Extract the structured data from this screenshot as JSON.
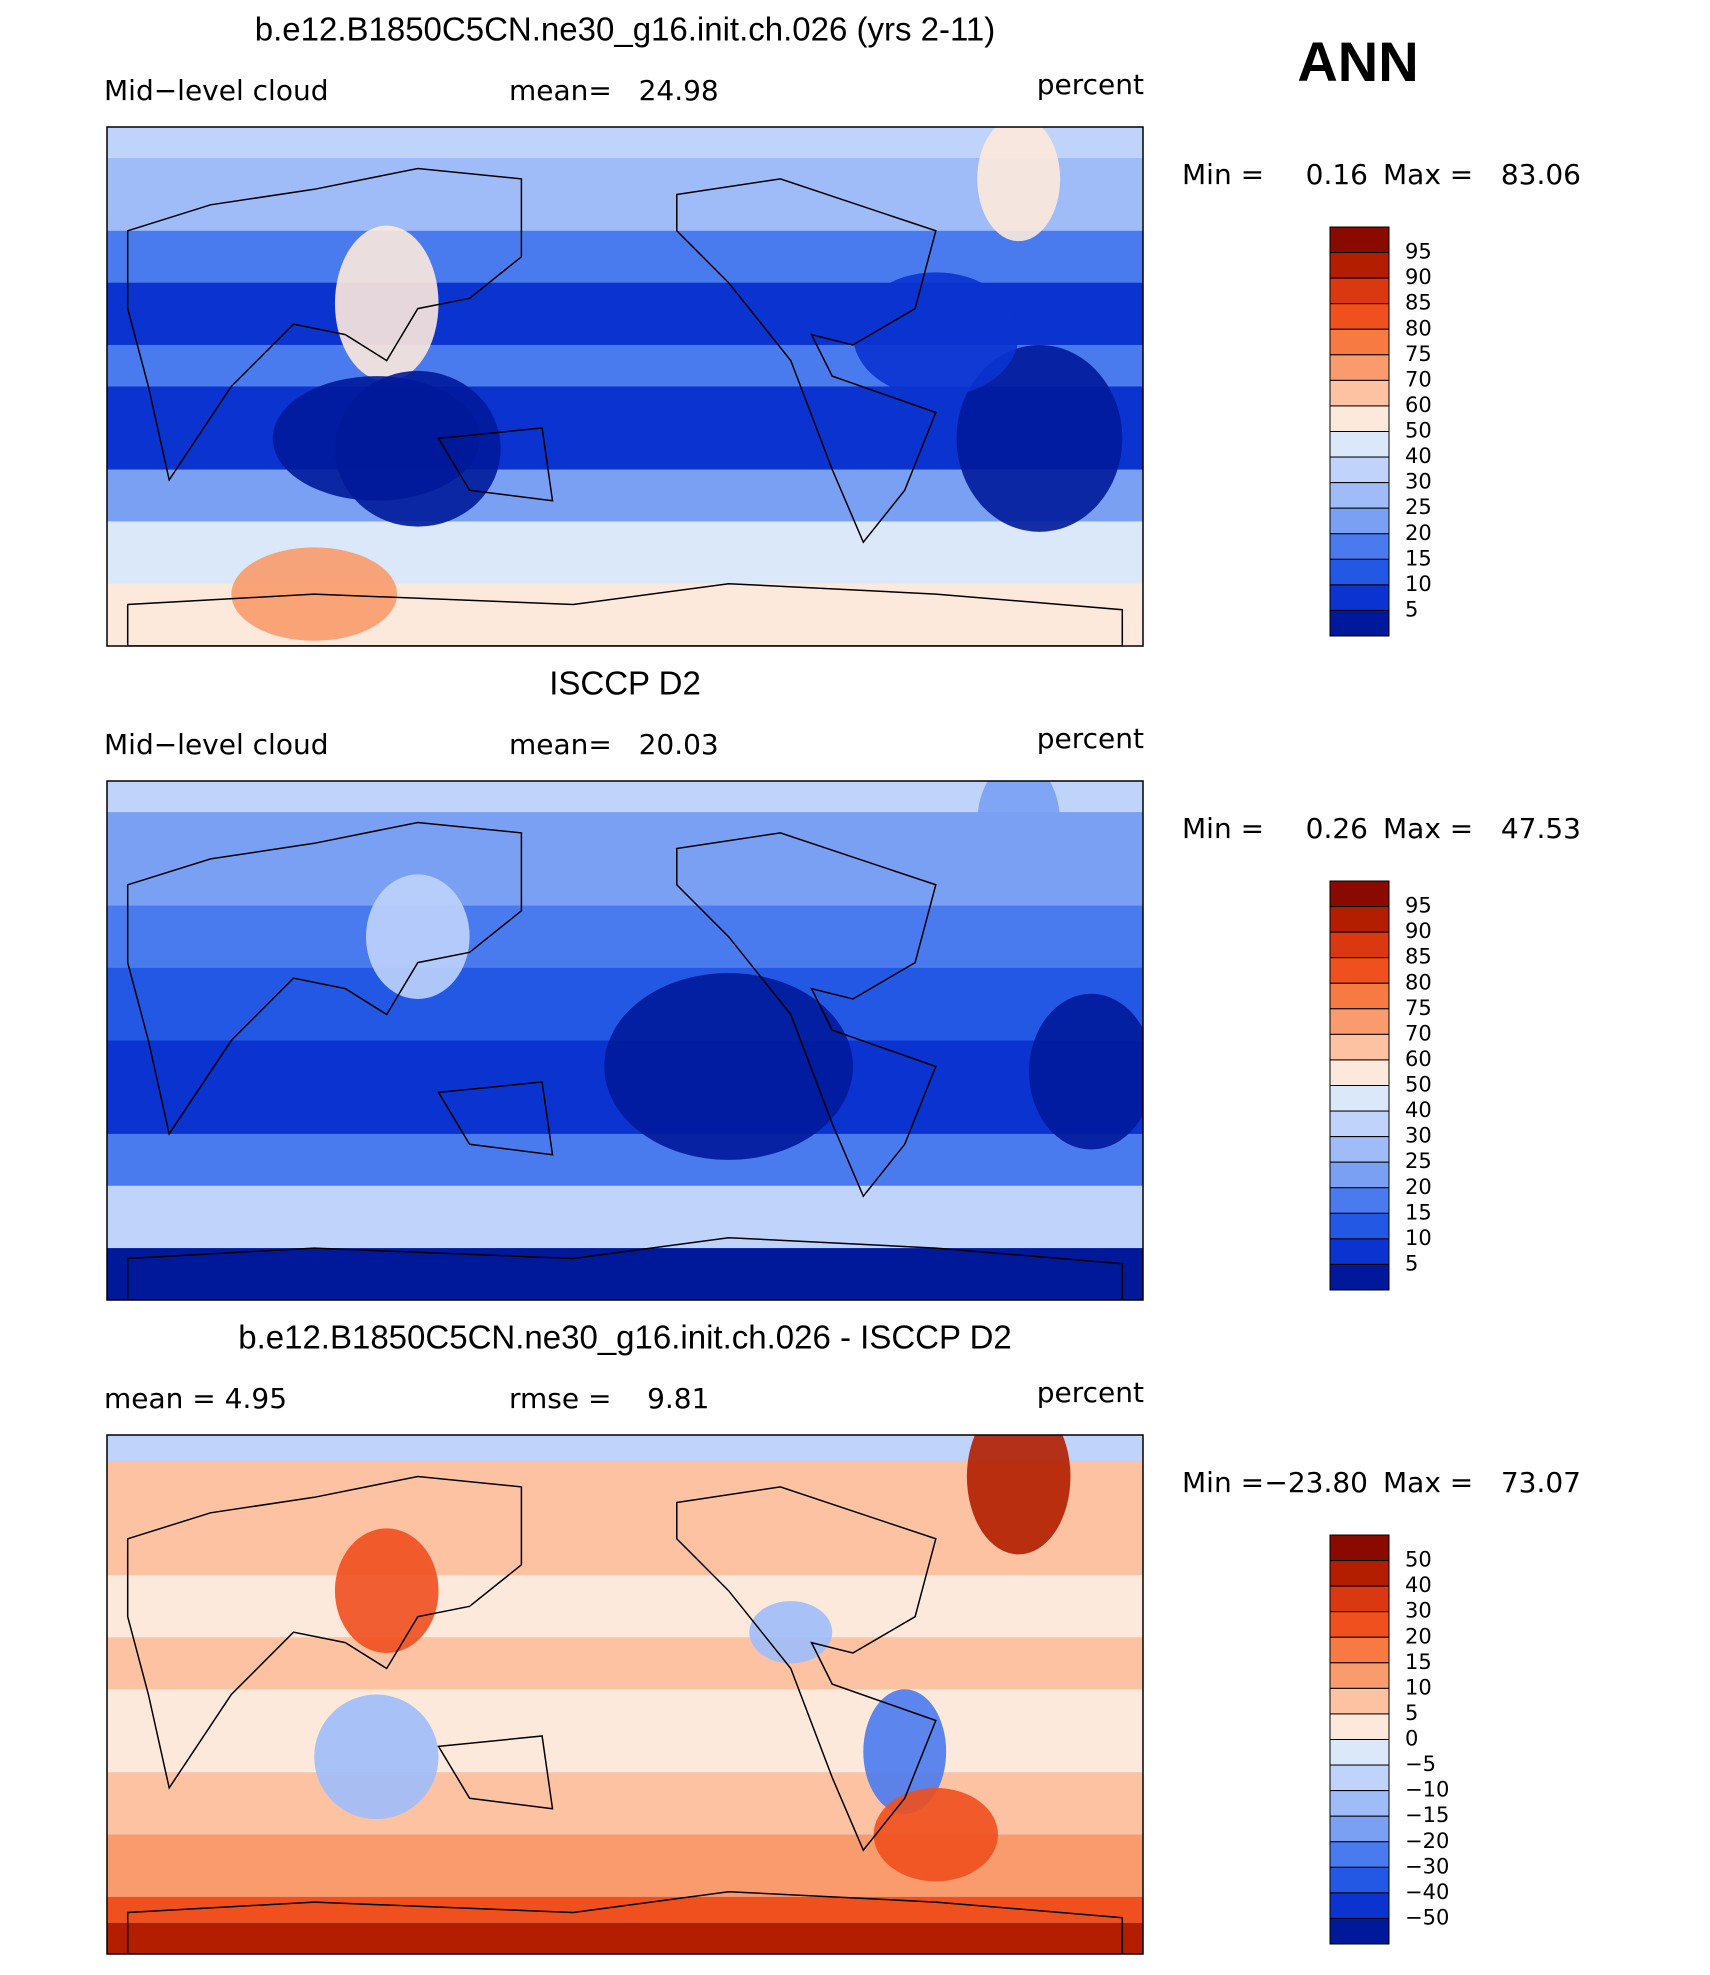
{
  "season": "ANN",
  "colors": [
    "#8a0a00",
    "#b31e00",
    "#d93810",
    "#f04f1e",
    "#f77a42",
    "#f99b6c",
    "#fcc2a2",
    "#fde9dc",
    "#dbe8fa",
    "#bfd3fb",
    "#9fbcf9",
    "#7aa0f4",
    "#4a7bee",
    "#2358e5",
    "#0a33cf",
    "#00199a"
  ],
  "panels": [
    {
      "title": "b.e12.B1850C5CN.ne30_g16.init.ch.026 (yrs 2-11)",
      "left": "Mid−level cloud",
      "stat1": "mean=   24.98",
      "stat2": null,
      "units": "percent",
      "min_label": "Min =",
      "min": "0.16",
      "max_label": "Max =",
      "max": "83.06",
      "levels": [
        "95",
        "90",
        "85",
        "80",
        "75",
        "70",
        "60",
        "50",
        "40",
        "30",
        "25",
        "20",
        "15",
        "10",
        "5"
      ]
    },
    {
      "title": "ISCCP D2",
      "left": "Mid−level cloud",
      "stat1": "mean=   20.03",
      "stat2": null,
      "units": "percent",
      "min_label": "Min =",
      "min": "0.26",
      "max_label": "Max =",
      "max": "47.53",
      "levels": [
        "95",
        "90",
        "85",
        "80",
        "75",
        "70",
        "60",
        "50",
        "40",
        "30",
        "25",
        "20",
        "15",
        "10",
        "5"
      ]
    },
    {
      "title": "b.e12.B1850C5CN.ne30_g16.init.ch.026 - ISCCP D2",
      "left": "mean =    4.95",
      "stat1": "rmse =    9.81",
      "stat2": null,
      "units": "percent",
      "min_label": "Min =",
      "min": "−23.80",
      "max_label": "Max =",
      "max": "73.07",
      "levels": [
        "50",
        "40",
        "30",
        "20",
        "15",
        "10",
        "5",
        "0",
        "−5",
        "−10",
        "−15",
        "−20",
        "−30",
        "−40",
        "−50"
      ]
    }
  ]
}
